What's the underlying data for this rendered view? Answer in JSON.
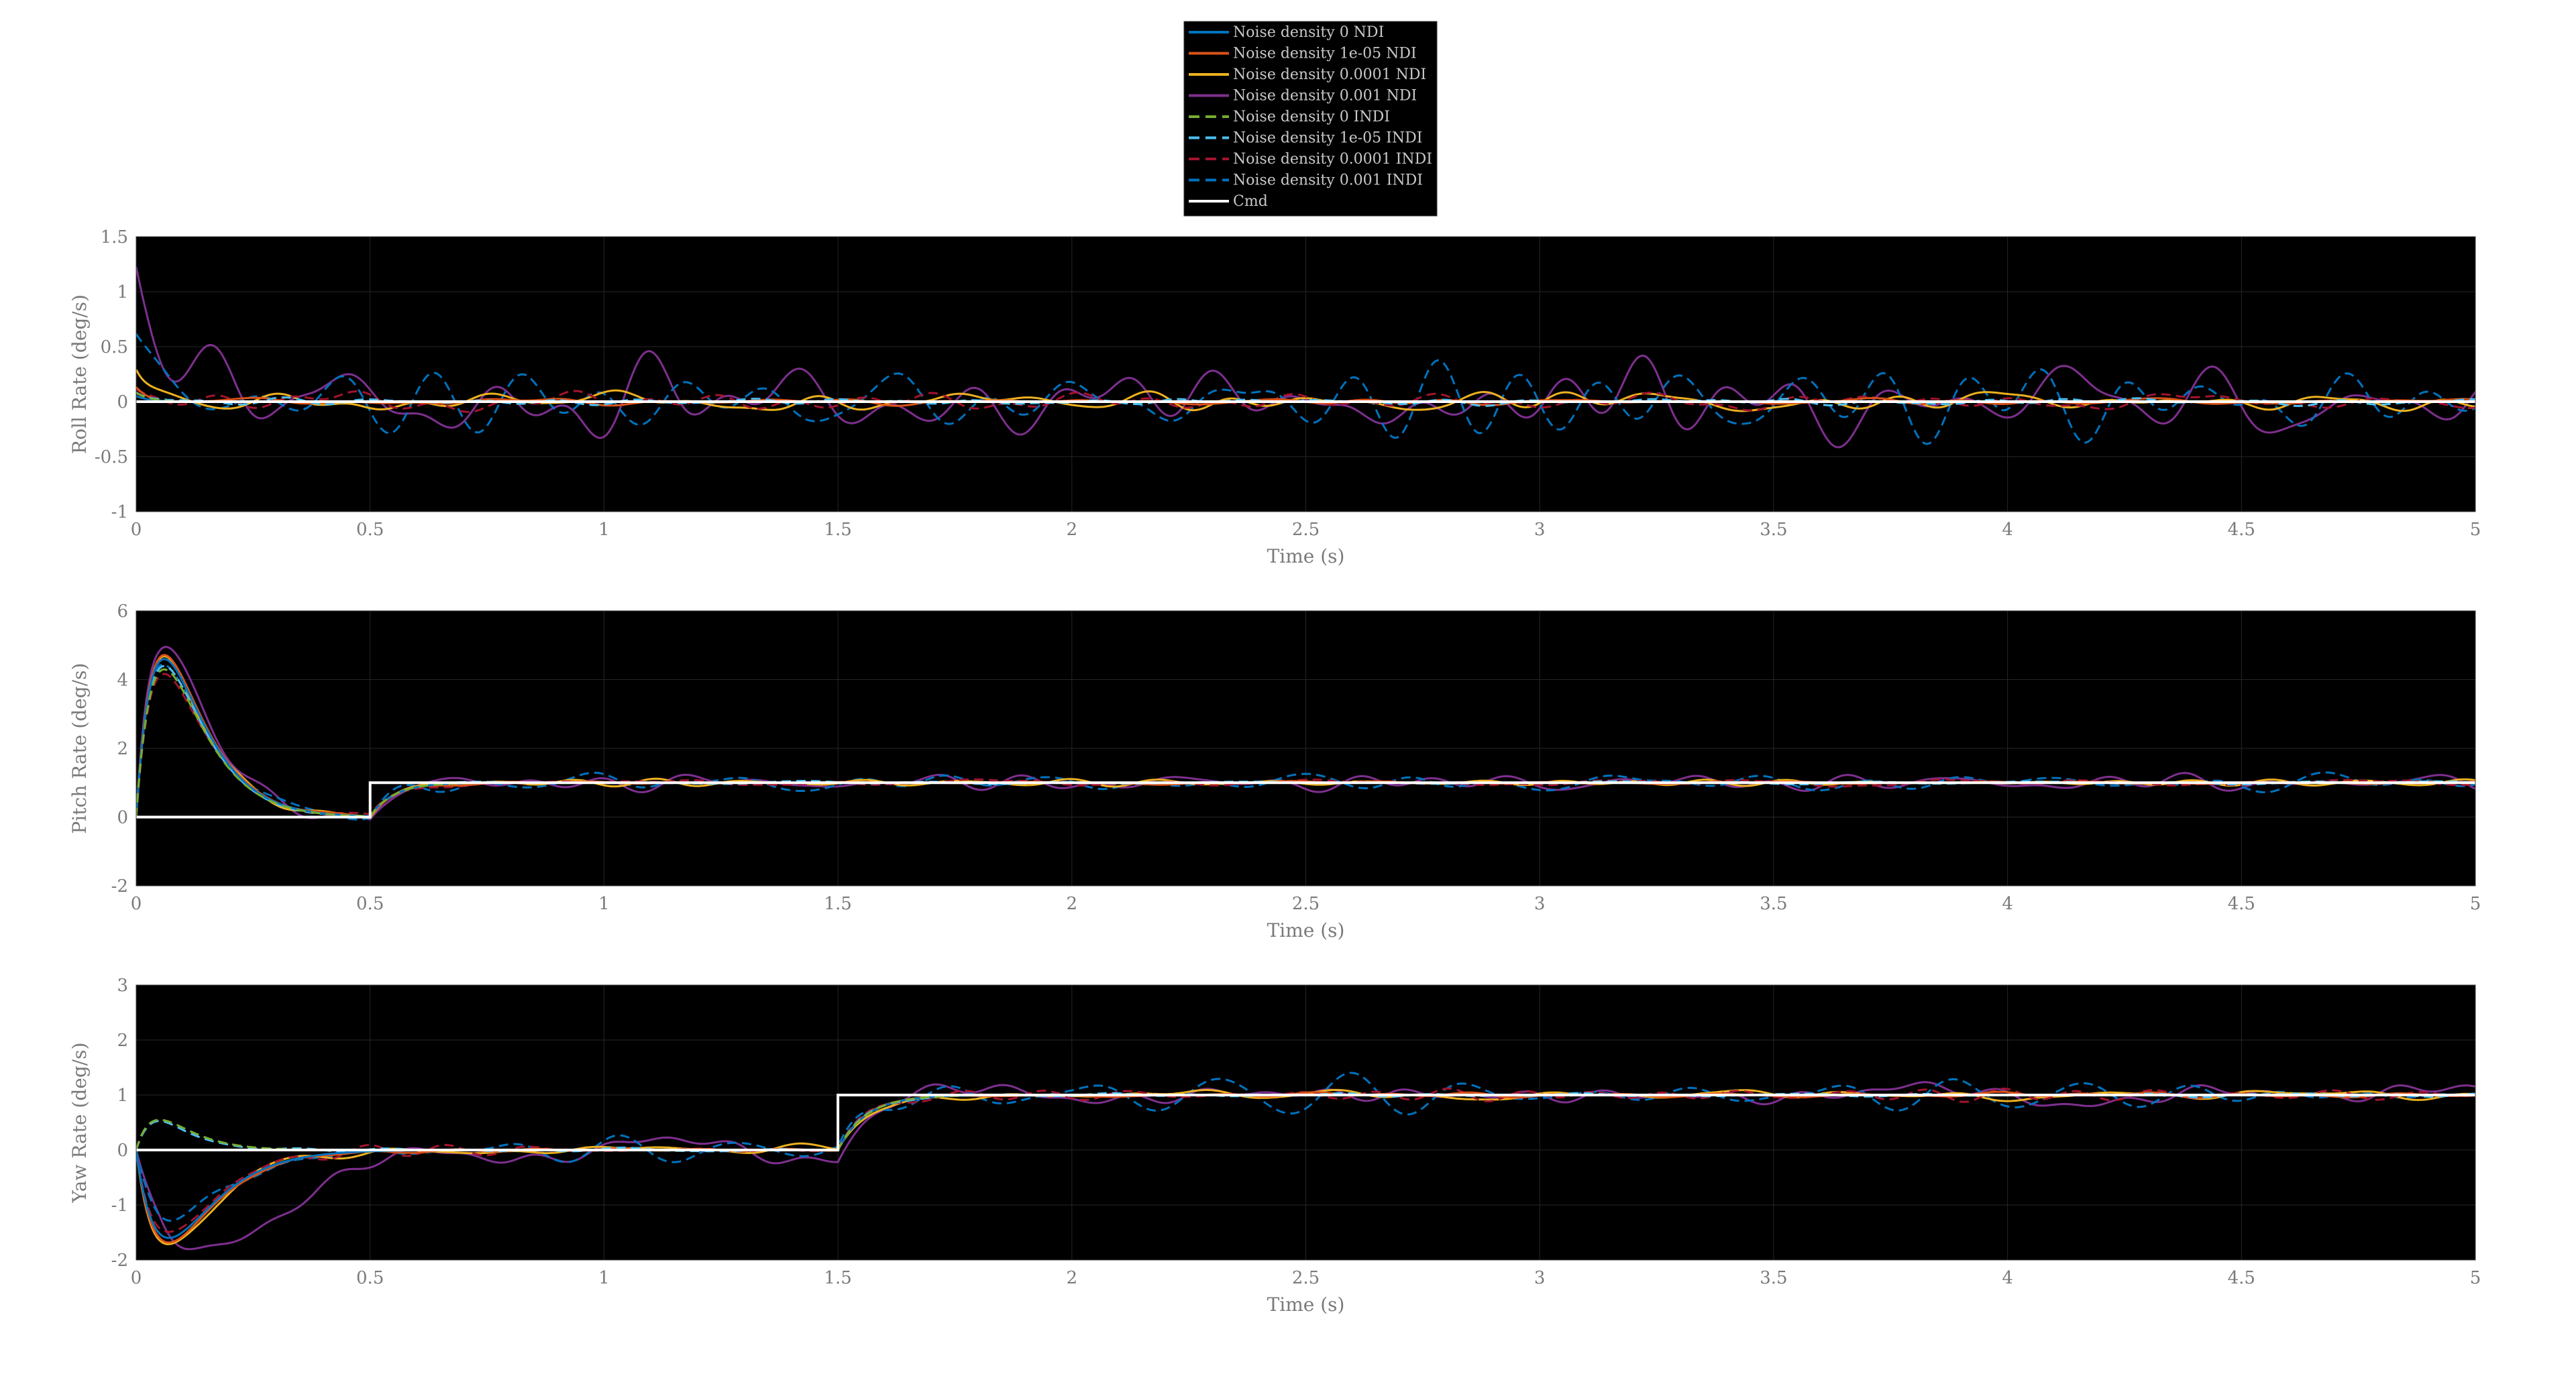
{
  "legend": {
    "entries": [
      {
        "label": "Noise density 0 NDI",
        "color": "#0072BD",
        "dashed": false
      },
      {
        "label": "Noise density 1e-05 NDI",
        "color": "#D95319",
        "dashed": false
      },
      {
        "label": "Noise density 0.0001 NDI",
        "color": "#EDB120",
        "dashed": false
      },
      {
        "label": "Noise density 0.001 NDI",
        "color": "#7E2F8E",
        "dashed": false
      },
      {
        "label": "Noise density 0 INDI",
        "color": "#77AC30",
        "dashed": true
      },
      {
        "label": "Noise density 1e-05 INDI",
        "color": "#4DBEEE",
        "dashed": true
      },
      {
        "label": "Noise density 0.0001 INDI",
        "color": "#A2142F",
        "dashed": true
      },
      {
        "label": "Noise density 0.001 INDI",
        "color": "#0072BD",
        "dashed": true
      },
      {
        "label": "Cmd",
        "color": "#FFFFFF",
        "dashed": false
      }
    ]
  },
  "chart_data": [
    {
      "type": "line",
      "title": "",
      "xlabel": "Time (s)",
      "ylabel": "Roll Rate (deg/s)",
      "xlim": [
        0,
        5
      ],
      "ylim": [
        -1,
        1.5
      ],
      "xticks": [
        0,
        0.5,
        1,
        1.5,
        2,
        2.5,
        3,
        3.5,
        4,
        4.5,
        5
      ],
      "yticks": [
        -1,
        -0.5,
        0,
        0.5,
        1,
        1.5
      ],
      "grid": true,
      "cmd": {
        "x": [
          0,
          5
        ],
        "y": [
          0,
          0
        ]
      },
      "series": [
        {
          "name": "Noise density 0 NDI",
          "amp": 0.0,
          "seed": 11,
          "transient": [
            {
              "t0": 0,
              "peak": 0.05,
              "tau": 0.03
            }
          ]
        },
        {
          "name": "Noise density 1e-05 NDI",
          "amp": 0.03,
          "seed": 12,
          "transient": [
            {
              "t0": 0,
              "peak": 0.15,
              "tau": 0.03
            }
          ]
        },
        {
          "name": "Noise density 0.0001 NDI",
          "amp": 0.09,
          "seed": 13,
          "transient": [
            {
              "t0": 0,
              "peak": 0.3,
              "tau": 0.03
            }
          ]
        },
        {
          "name": "Noise density 0.001 NDI",
          "amp": 0.32,
          "seed": 14,
          "transient": [
            {
              "t0": 0,
              "peak": 1.25,
              "tau": 0.06
            }
          ]
        },
        {
          "name": "Noise density 0 INDI",
          "amp": 0.0,
          "seed": 15,
          "transient": [
            {
              "t0": 0,
              "peak": 0.08,
              "tau": 0.03
            }
          ]
        },
        {
          "name": "Noise density 1e-05 INDI",
          "amp": 0.03,
          "seed": 16,
          "transient": [
            {
              "t0": 0,
              "peak": 0.1,
              "tau": 0.03
            }
          ]
        },
        {
          "name": "Noise density 0.0001 INDI",
          "amp": 0.08,
          "seed": 17,
          "transient": [
            {
              "t0": 0,
              "peak": 0.12,
              "tau": 0.03
            }
          ]
        },
        {
          "name": "Noise density 0.001 INDI",
          "amp": 0.3,
          "seed": 18,
          "transient": [
            {
              "t0": 0,
              "peak": 0.55,
              "tau": 0.06
            }
          ]
        }
      ]
    },
    {
      "type": "line",
      "title": "",
      "xlabel": "Time (s)",
      "ylabel": "Pitch Rate (deg/s)",
      "xlim": [
        0,
        5
      ],
      "ylim": [
        -2,
        6
      ],
      "xticks": [
        0,
        0.5,
        1,
        1.5,
        2,
        2.5,
        3,
        3.5,
        4,
        4.5,
        5
      ],
      "yticks": [
        -2,
        0,
        2,
        4,
        6
      ],
      "grid": true,
      "cmd": {
        "x": [
          0,
          0.5,
          0.5,
          5
        ],
        "y": [
          0,
          0,
          1,
          1
        ]
      },
      "series": [
        {
          "name": "Noise density 0 NDI",
          "amp": 0.0,
          "seed": 21,
          "peak": 4.6,
          "tau": 0.06,
          "step_t": 0.5,
          "step_to": 1.0,
          "step_tau": 0.05
        },
        {
          "name": "Noise density 1e-05 NDI",
          "amp": 0.04,
          "seed": 22,
          "peak": 4.7,
          "tau": 0.06,
          "step_t": 0.5,
          "step_to": 1.0,
          "step_tau": 0.05
        },
        {
          "name": "Noise density 0.0001 NDI",
          "amp": 0.1,
          "seed": 23,
          "peak": 4.6,
          "tau": 0.06,
          "step_t": 0.5,
          "step_to": 1.0,
          "step_tau": 0.05
        },
        {
          "name": "Noise density 0.001 NDI",
          "amp": 0.25,
          "seed": 24,
          "peak": 5.1,
          "tau": 0.06,
          "step_t": 0.5,
          "step_to": 1.0,
          "step_tau": 0.05
        },
        {
          "name": "Noise density 0 INDI",
          "amp": 0.0,
          "seed": 25,
          "peak": 4.3,
          "tau": 0.06,
          "step_t": 0.5,
          "step_to": 1.0,
          "step_tau": 0.05
        },
        {
          "name": "Noise density 1e-05 INDI",
          "amp": 0.04,
          "seed": 26,
          "peak": 4.4,
          "tau": 0.06,
          "step_t": 0.5,
          "step_to": 1.0,
          "step_tau": 0.05
        },
        {
          "name": "Noise density 0.0001 INDI",
          "amp": 0.1,
          "seed": 27,
          "peak": 4.2,
          "tau": 0.06,
          "step_t": 0.5,
          "step_to": 1.0,
          "step_tau": 0.05
        },
        {
          "name": "Noise density 0.001 INDI",
          "amp": 0.25,
          "seed": 28,
          "peak": 4.5,
          "tau": 0.06,
          "step_t": 0.5,
          "step_to": 1.0,
          "step_tau": 0.05
        }
      ]
    },
    {
      "type": "line",
      "title": "",
      "xlabel": "Time (s)",
      "ylabel": "Yaw Rate (deg/s)",
      "xlim": [
        0,
        5
      ],
      "ylim": [
        -2,
        3
      ],
      "xticks": [
        0,
        0.5,
        1,
        1.5,
        2,
        2.5,
        3,
        3.5,
        4,
        4.5,
        5
      ],
      "yticks": [
        -2,
        -1,
        0,
        1,
        2,
        3
      ],
      "grid": true,
      "cmd": {
        "x": [
          0,
          1.5,
          1.5,
          5
        ],
        "y": [
          0,
          0,
          1,
          1
        ]
      },
      "series": [
        {
          "name": "Noise density 0 NDI",
          "amp": 0.0,
          "seed": 31,
          "peak": -1.6,
          "tau": 0.07,
          "step_t": 1.5,
          "step_to": 1.0,
          "step_tau": 0.06
        },
        {
          "name": "Noise density 1e-05 NDI",
          "amp": 0.04,
          "seed": 32,
          "peak": -1.7,
          "tau": 0.07,
          "step_t": 1.5,
          "step_to": 1.0,
          "step_tau": 0.06
        },
        {
          "name": "Noise density 0.0001 NDI",
          "amp": 0.1,
          "seed": 33,
          "peak": -1.75,
          "tau": 0.07,
          "step_t": 1.5,
          "step_to": 1.0,
          "step_tau": 0.06
        },
        {
          "name": "Noise density 0.001 NDI",
          "amp": 0.25,
          "seed": 34,
          "peak": -1.8,
          "tau": 0.12,
          "step_t": 1.5,
          "step_to": 1.0,
          "step_tau": 0.06
        },
        {
          "name": "Noise density 0 INDI",
          "amp": 0.0,
          "seed": 35,
          "peak": 0.55,
          "tau": 0.05,
          "step_t": 1.5,
          "step_to": 1.0,
          "step_tau": 0.06
        },
        {
          "name": "Noise density 1e-05 INDI",
          "amp": 0.04,
          "seed": 36,
          "peak": 0.5,
          "tau": 0.05,
          "step_t": 1.5,
          "step_to": 1.0,
          "step_tau": 0.06
        },
        {
          "name": "Noise density 0.0001 INDI",
          "amp": 0.1,
          "seed": 37,
          "peak": -1.5,
          "tau": 0.07,
          "step_t": 1.5,
          "step_to": 1.0,
          "step_tau": 0.06
        },
        {
          "name": "Noise density 0.001 INDI",
          "amp": 0.25,
          "seed": 38,
          "peak": -1.2,
          "tau": 0.08,
          "step_t": 1.5,
          "step_to": 1.0,
          "step_tau": 0.06
        }
      ]
    }
  ]
}
